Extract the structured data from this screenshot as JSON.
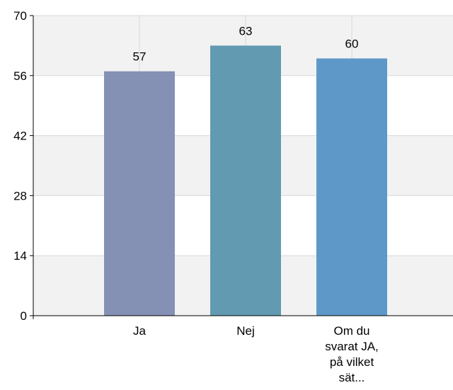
{
  "chart_data": {
    "type": "bar",
    "title": "",
    "xlabel": "",
    "ylabel": "",
    "ylim": [
      0,
      70
    ],
    "yticks": [
      0,
      14,
      28,
      42,
      56,
      70
    ],
    "categories": [
      [
        "Ja"
      ],
      [
        "Nej"
      ],
      [
        "Om du",
        "svarat JA,",
        "på vilket",
        "sät..."
      ]
    ],
    "values": [
      57,
      63,
      60
    ],
    "data_labels": [
      "57",
      "63",
      "60"
    ],
    "colors": [
      "#8491b4",
      "#629bb1",
      "#5e98c9"
    ],
    "band_color": "#f2f2f2",
    "gridline_color": "#d8d8d8",
    "grid": true,
    "legend": "none"
  }
}
